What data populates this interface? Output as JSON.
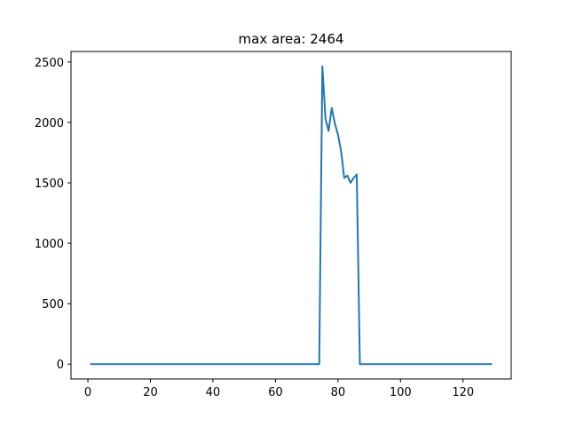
{
  "chart_data": {
    "type": "line",
    "title": "max area: 2464",
    "xlabel": "",
    "ylabel": "",
    "xlim": [
      -5.4,
      135.4
    ],
    "ylim": [
      -123.2,
      2587.2
    ],
    "xticks": [
      0,
      20,
      40,
      60,
      80,
      100,
      120
    ],
    "xtick_labels": [
      "0",
      "20",
      "40",
      "60",
      "80",
      "100",
      "120"
    ],
    "yticks": [
      0,
      500,
      1000,
      1500,
      2000,
      2500
    ],
    "ytick_labels": [
      "0",
      "500",
      "1000",
      "1500",
      "2000",
      "2500"
    ],
    "grid": false,
    "legend": "none",
    "series": [
      {
        "color": "#1f77b4",
        "x": [
          1,
          5,
          10,
          15,
          20,
          25,
          30,
          35,
          40,
          45,
          50,
          55,
          60,
          65,
          70,
          74,
          75,
          76,
          77,
          78,
          79,
          80,
          81,
          82,
          83,
          84,
          85,
          86,
          87,
          90,
          95,
          100,
          105,
          110,
          115,
          120,
          125,
          129
        ],
        "y": [
          0,
          0,
          0,
          0,
          0,
          0,
          0,
          0,
          0,
          0,
          0,
          0,
          0,
          0,
          0,
          0,
          2464,
          2030,
          1930,
          2120,
          1990,
          1900,
          1760,
          1540,
          1560,
          1500,
          1540,
          1570,
          0,
          0,
          0,
          0,
          0,
          0,
          0,
          0,
          0,
          0
        ]
      }
    ]
  }
}
